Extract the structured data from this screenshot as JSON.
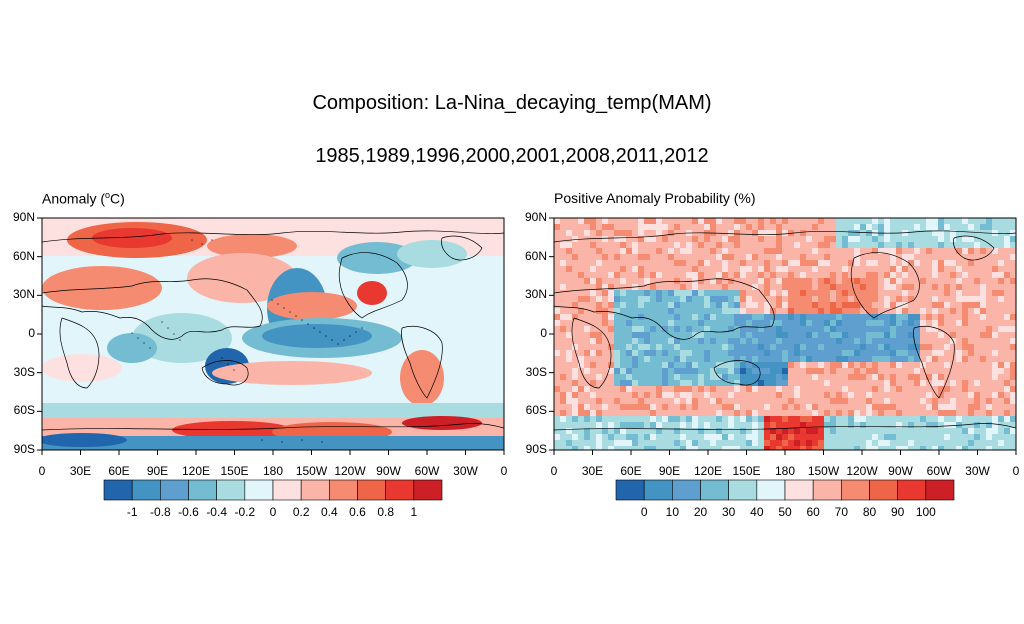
{
  "title": "Composition: La-Nina_decaying_temp(MAM)",
  "subtitle": "1985,1989,1996,2000,2001,2008,2011,2012",
  "left_panel": {
    "title_prefix": "Anomaly (",
    "title_sup": "o",
    "title_suffix": "C)",
    "colorbar_labels": [
      "-1",
      "-0.8",
      "-0.6",
      "-0.4",
      "-0.2",
      "0",
      "0.2",
      "0.4",
      "0.6",
      "0.8",
      "1"
    ]
  },
  "right_panel": {
    "title": "Positive Anomaly Probability (%)",
    "colorbar_labels": [
      "0",
      "10",
      "20",
      "30",
      "40",
      "50",
      "60",
      "70",
      "80",
      "90",
      "100"
    ]
  },
  "y_axis_labels": [
    "90N",
    "60N",
    "30N",
    "0",
    "30S",
    "60S",
    "90S"
  ],
  "x_axis_labels": [
    "0",
    "30E",
    "60E",
    "90E",
    "120E",
    "150E",
    "180",
    "150W",
    "120W",
    "90W",
    "60W",
    "30W",
    "0"
  ],
  "colors": [
    "#2166ac",
    "#4393c3",
    "#5e9fd0",
    "#74bcd2",
    "#a8dce0",
    "#e2f5fb",
    "#fde0e0",
    "#fbb4a8",
    "#f58c72",
    "#ef6548",
    "#e8382f",
    "#cc1f26"
  ]
}
